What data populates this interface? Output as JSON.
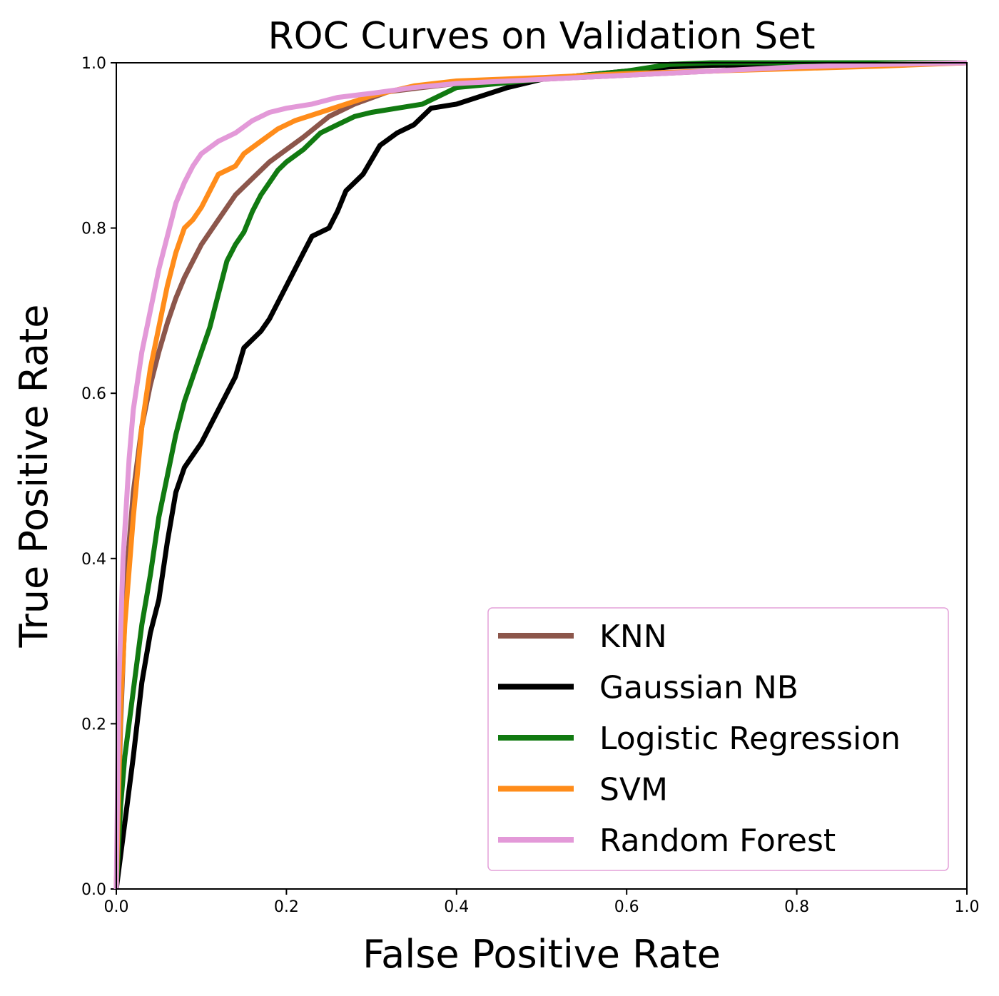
{
  "chart_data": {
    "type": "line",
    "title": "ROC Curves on Validation Set",
    "xlabel": "False Positive Rate",
    "ylabel": "True Positive Rate",
    "xlim": [
      0.0,
      1.0
    ],
    "ylim": [
      0.0,
      1.0
    ],
    "xticks": [
      "0.0",
      "0.2",
      "0.4",
      "0.6",
      "0.8",
      "1.0"
    ],
    "yticks": [
      "0.0",
      "0.2",
      "0.4",
      "0.6",
      "0.8",
      "1.0"
    ],
    "grid": false,
    "legend_position": "lower-right",
    "series": [
      {
        "name": "KNN",
        "color": "#8c564b",
        "points": [
          [
            0,
            0
          ],
          [
            0.005,
            0.2
          ],
          [
            0.012,
            0.38
          ],
          [
            0.02,
            0.48
          ],
          [
            0.03,
            0.56
          ],
          [
            0.04,
            0.61
          ],
          [
            0.05,
            0.65
          ],
          [
            0.06,
            0.685
          ],
          [
            0.07,
            0.715
          ],
          [
            0.08,
            0.74
          ],
          [
            0.09,
            0.76
          ],
          [
            0.1,
            0.78
          ],
          [
            0.12,
            0.81
          ],
          [
            0.14,
            0.84
          ],
          [
            0.16,
            0.86
          ],
          [
            0.18,
            0.88
          ],
          [
            0.2,
            0.895
          ],
          [
            0.22,
            0.91
          ],
          [
            0.25,
            0.935
          ],
          [
            0.28,
            0.95
          ],
          [
            0.32,
            0.965
          ],
          [
            0.36,
            0.97
          ],
          [
            0.4,
            0.975
          ],
          [
            0.5,
            0.98
          ],
          [
            0.6,
            0.985
          ],
          [
            0.7,
            0.99
          ],
          [
            0.8,
            0.995
          ],
          [
            0.9,
            0.998
          ],
          [
            1.0,
            1.0
          ]
        ]
      },
      {
        "name": "Gaussian NB",
        "color": "#000000",
        "points": [
          [
            0,
            0
          ],
          [
            0.01,
            0.08
          ],
          [
            0.02,
            0.16
          ],
          [
            0.03,
            0.25
          ],
          [
            0.04,
            0.31
          ],
          [
            0.05,
            0.35
          ],
          [
            0.06,
            0.42
          ],
          [
            0.07,
            0.48
          ],
          [
            0.08,
            0.51
          ],
          [
            0.09,
            0.525
          ],
          [
            0.1,
            0.54
          ],
          [
            0.12,
            0.58
          ],
          [
            0.14,
            0.62
          ],
          [
            0.15,
            0.655
          ],
          [
            0.17,
            0.675
          ],
          [
            0.18,
            0.69
          ],
          [
            0.2,
            0.73
          ],
          [
            0.22,
            0.77
          ],
          [
            0.23,
            0.79
          ],
          [
            0.25,
            0.8
          ],
          [
            0.26,
            0.82
          ],
          [
            0.27,
            0.845
          ],
          [
            0.29,
            0.865
          ],
          [
            0.31,
            0.9
          ],
          [
            0.33,
            0.915
          ],
          [
            0.35,
            0.925
          ],
          [
            0.37,
            0.945
          ],
          [
            0.4,
            0.95
          ],
          [
            0.43,
            0.96
          ],
          [
            0.46,
            0.97
          ],
          [
            0.5,
            0.98
          ],
          [
            0.55,
            0.985
          ],
          [
            0.6,
            0.99
          ],
          [
            0.65,
            0.995
          ],
          [
            0.7,
            0.997
          ],
          [
            0.8,
            0.998
          ],
          [
            1.0,
            1.0
          ]
        ]
      },
      {
        "name": "Logistic Regression",
        "color": "#117a11",
        "points": [
          [
            0,
            0
          ],
          [
            0.005,
            0.1
          ],
          [
            0.01,
            0.16
          ],
          [
            0.02,
            0.24
          ],
          [
            0.03,
            0.32
          ],
          [
            0.04,
            0.38
          ],
          [
            0.05,
            0.45
          ],
          [
            0.06,
            0.5
          ],
          [
            0.07,
            0.55
          ],
          [
            0.08,
            0.59
          ],
          [
            0.09,
            0.62
          ],
          [
            0.1,
            0.65
          ],
          [
            0.11,
            0.68
          ],
          [
            0.12,
            0.72
          ],
          [
            0.13,
            0.76
          ],
          [
            0.14,
            0.78
          ],
          [
            0.15,
            0.795
          ],
          [
            0.16,
            0.82
          ],
          [
            0.17,
            0.84
          ],
          [
            0.18,
            0.855
          ],
          [
            0.19,
            0.87
          ],
          [
            0.2,
            0.88
          ],
          [
            0.22,
            0.895
          ],
          [
            0.24,
            0.915
          ],
          [
            0.26,
            0.925
          ],
          [
            0.28,
            0.935
          ],
          [
            0.3,
            0.94
          ],
          [
            0.33,
            0.945
          ],
          [
            0.36,
            0.95
          ],
          [
            0.38,
            0.96
          ],
          [
            0.4,
            0.97
          ],
          [
            0.45,
            0.975
          ],
          [
            0.5,
            0.98
          ],
          [
            0.55,
            0.985
          ],
          [
            0.6,
            0.99
          ],
          [
            0.65,
            0.998
          ],
          [
            0.7,
            1.0
          ],
          [
            1.0,
            1.0
          ]
        ]
      },
      {
        "name": "SVM",
        "color": "#ff8c1a",
        "points": [
          [
            0,
            0
          ],
          [
            0.005,
            0.22
          ],
          [
            0.01,
            0.32
          ],
          [
            0.02,
            0.45
          ],
          [
            0.03,
            0.56
          ],
          [
            0.04,
            0.63
          ],
          [
            0.05,
            0.68
          ],
          [
            0.06,
            0.73
          ],
          [
            0.07,
            0.77
          ],
          [
            0.08,
            0.8
          ],
          [
            0.09,
            0.81
          ],
          [
            0.1,
            0.825
          ],
          [
            0.11,
            0.845
          ],
          [
            0.12,
            0.865
          ],
          [
            0.14,
            0.875
          ],
          [
            0.15,
            0.89
          ],
          [
            0.17,
            0.905
          ],
          [
            0.19,
            0.92
          ],
          [
            0.21,
            0.93
          ],
          [
            0.24,
            0.94
          ],
          [
            0.27,
            0.95
          ],
          [
            0.3,
            0.96
          ],
          [
            0.35,
            0.972
          ],
          [
            0.4,
            0.978
          ],
          [
            0.5,
            0.982
          ],
          [
            0.6,
            0.987
          ],
          [
            0.7,
            0.99
          ],
          [
            0.8,
            0.993
          ],
          [
            0.9,
            0.996
          ],
          [
            1.0,
            1.0
          ]
        ]
      },
      {
        "name": "Random Forest",
        "color": "#e399d8",
        "points": [
          [
            0,
            0
          ],
          [
            0.003,
            0.25
          ],
          [
            0.008,
            0.4
          ],
          [
            0.015,
            0.52
          ],
          [
            0.02,
            0.58
          ],
          [
            0.03,
            0.65
          ],
          [
            0.04,
            0.7
          ],
          [
            0.05,
            0.75
          ],
          [
            0.06,
            0.79
          ],
          [
            0.07,
            0.83
          ],
          [
            0.08,
            0.855
          ],
          [
            0.09,
            0.875
          ],
          [
            0.1,
            0.89
          ],
          [
            0.12,
            0.905
          ],
          [
            0.14,
            0.915
          ],
          [
            0.16,
            0.93
          ],
          [
            0.18,
            0.94
          ],
          [
            0.2,
            0.945
          ],
          [
            0.23,
            0.95
          ],
          [
            0.26,
            0.958
          ],
          [
            0.3,
            0.963
          ],
          [
            0.35,
            0.97
          ],
          [
            0.4,
            0.975
          ],
          [
            0.5,
            0.98
          ],
          [
            0.6,
            0.985
          ],
          [
            0.7,
            0.99
          ],
          [
            0.8,
            0.995
          ],
          [
            0.9,
            0.998
          ],
          [
            1.0,
            1.0
          ]
        ]
      }
    ]
  }
}
